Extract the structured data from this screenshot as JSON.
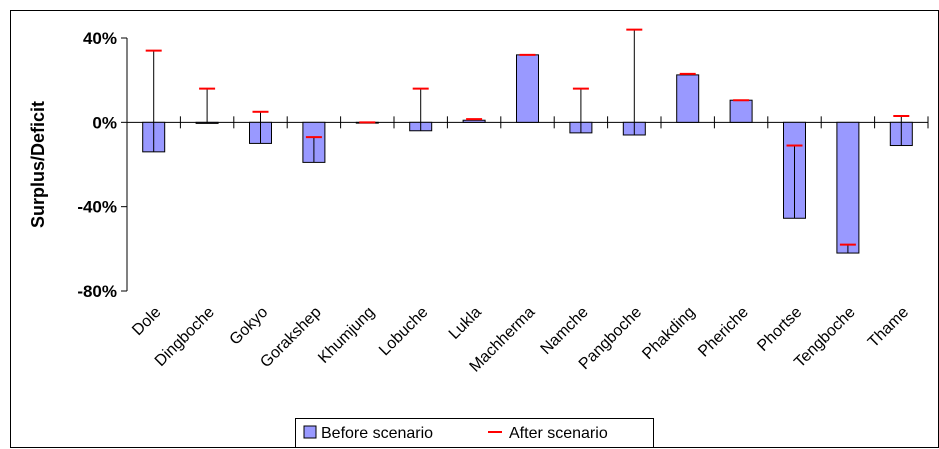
{
  "chart_data": {
    "type": "bar",
    "title": "",
    "xlabel": "",
    "ylabel": "Surplus/Deficit",
    "ylim": [
      -80,
      40
    ],
    "yticks": [
      40,
      0,
      -40,
      -80
    ],
    "ytick_labels": [
      "40%",
      "0%",
      "-40%",
      "-80%"
    ],
    "grid": false,
    "legend_position": "bottom-center",
    "categories": [
      "Dole",
      "Dingboche",
      "Gokyo",
      "Gorakshep",
      "Khumjung",
      "Lobuche",
      "Lukla",
      "Machherma",
      "Namche",
      "Pangboche",
      "Phakding",
      "Pheriche",
      "Phortse",
      "Tengboche",
      "Thame"
    ],
    "series": [
      {
        "name": "Before scenario",
        "kind": "bar",
        "color": "#9999ff",
        "values": [
          -14,
          -0.5,
          -10,
          -19,
          0,
          -4,
          1,
          32,
          -5,
          -6,
          22.5,
          10.5,
          -45.5,
          -62,
          -11
        ]
      },
      {
        "name": "After scenario",
        "kind": "marker",
        "color": "#ff0000",
        "values": [
          34,
          16,
          5,
          -7,
          0,
          16,
          1.5,
          32,
          16,
          44,
          23,
          10.5,
          -11,
          -58,
          3
        ]
      }
    ]
  }
}
